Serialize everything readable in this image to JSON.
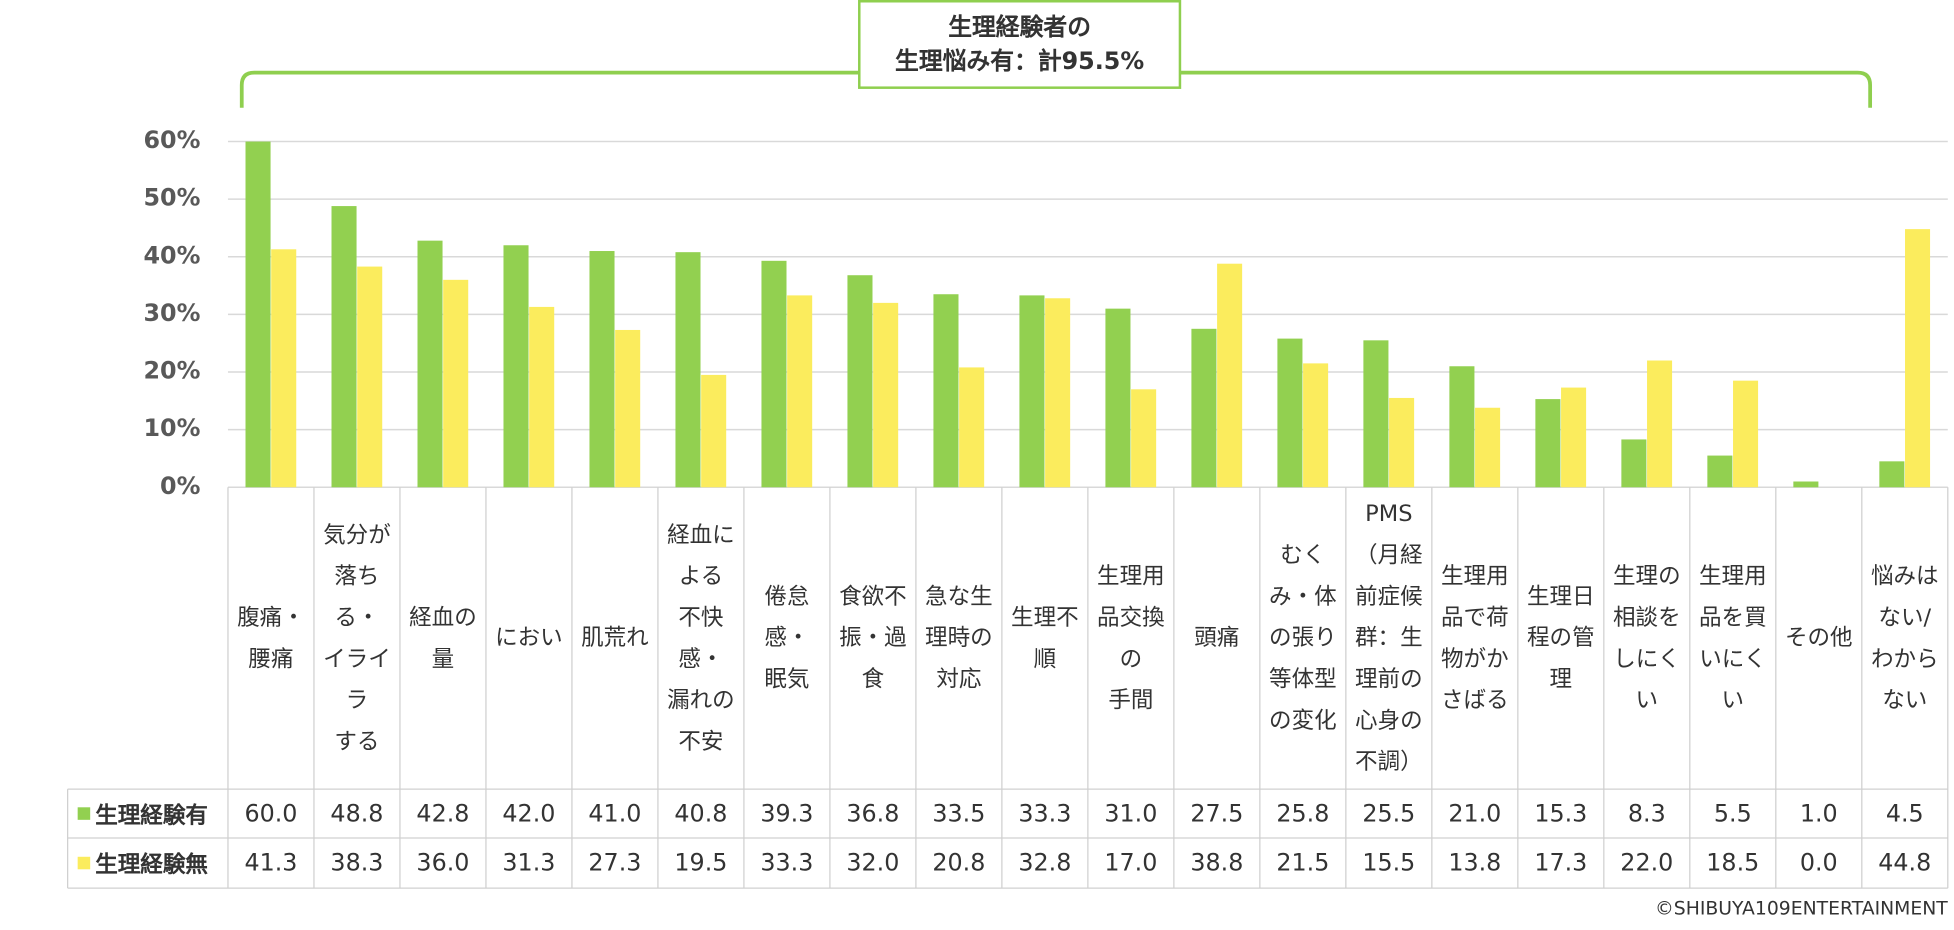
{
  "chart_data": {
    "type": "bar",
    "annotation": "生理経験者の\n生理悩み有：計95.5%",
    "categories": [
      "腹痛・\n腰痛",
      "気分が\n落ち\nる・\nイライ\nラ\nする",
      "経血の\n量",
      "におい",
      "肌荒れ",
      "経血に\nよる\n不快\n感・\n漏れの\n不安",
      "倦怠\n感・\n眠気",
      "食欲不\n振・過\n食",
      "急な生\n理時の\n対応",
      "生理不\n順",
      "生理用\n品交換\nの\n手間",
      "頭痛",
      "むく\nみ・体\nの張り\n等体型\nの変化",
      "PMS\n（月経\n前症候\n群：生\n理前の\n心身の\n不調）",
      "生理用\n品で荷\n物がか\nさばる",
      "生理日\n程の管\n理",
      "生理の\n相談を\nしにく\nい",
      "生理用\n品を買\nいにく\nい",
      "その他",
      "悩みは\nない/\nわから\nない"
    ],
    "series": [
      {
        "name": "生理経験有",
        "color": "#92d050",
        "values": [
          60.0,
          48.8,
          42.8,
          42.0,
          41.0,
          40.8,
          39.3,
          36.8,
          33.5,
          33.3,
          31.0,
          27.5,
          25.8,
          25.5,
          21.0,
          15.3,
          8.3,
          5.5,
          1.0,
          4.5
        ],
        "value_labels": [
          "60.0",
          "48.8",
          "42.8",
          "42.0",
          "41.0",
          "40.8",
          "39.3",
          "36.8",
          "33.5",
          "33.3",
          "31.0",
          "27.5",
          "25.8",
          "25.5",
          "21.0",
          "15.3",
          "8.3",
          "5.5",
          "1.0",
          "4.5"
        ]
      },
      {
        "name": "生理経験無",
        "color": "#fbec5d",
        "values": [
          41.3,
          38.3,
          36.0,
          31.3,
          27.3,
          19.5,
          33.3,
          32.0,
          20.8,
          32.8,
          17.0,
          38.8,
          21.5,
          15.5,
          13.8,
          17.3,
          22.0,
          18.5,
          0.0,
          44.8
        ],
        "value_labels": [
          "41.3",
          "38.3",
          "36.0",
          "31.3",
          "27.3",
          "19.5",
          "33.3",
          "32.0",
          "20.8",
          "32.8",
          "17.0",
          "38.8",
          "21.5",
          "15.5",
          "13.8",
          "17.3",
          "22.0",
          "18.5",
          "0.0",
          "44.8"
        ]
      }
    ],
    "ylim": [
      0,
      60
    ],
    "yticks": [
      {
        "value": 0,
        "label": "0%"
      },
      {
        "value": 10,
        "label": "10%"
      },
      {
        "value": 20,
        "label": "20%"
      },
      {
        "value": 30,
        "label": "30%"
      },
      {
        "value": 40,
        "label": "40%"
      },
      {
        "value": 50,
        "label": "50%"
      },
      {
        "value": 60,
        "label": "60%"
      }
    ],
    "grid": true,
    "credit": "©SHIBUYA109ENTERTAINMENT"
  }
}
